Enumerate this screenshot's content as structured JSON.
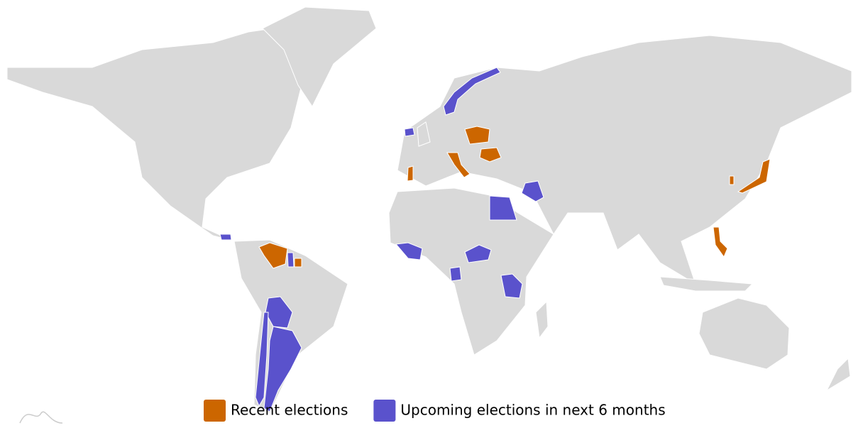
{
  "legend": {
    "items": [
      {
        "label": "Recent elections",
        "color": "#cc6600"
      },
      {
        "label": "Upcoming elections in next 6 months",
        "color": "#5a52cc"
      }
    ]
  }
}
